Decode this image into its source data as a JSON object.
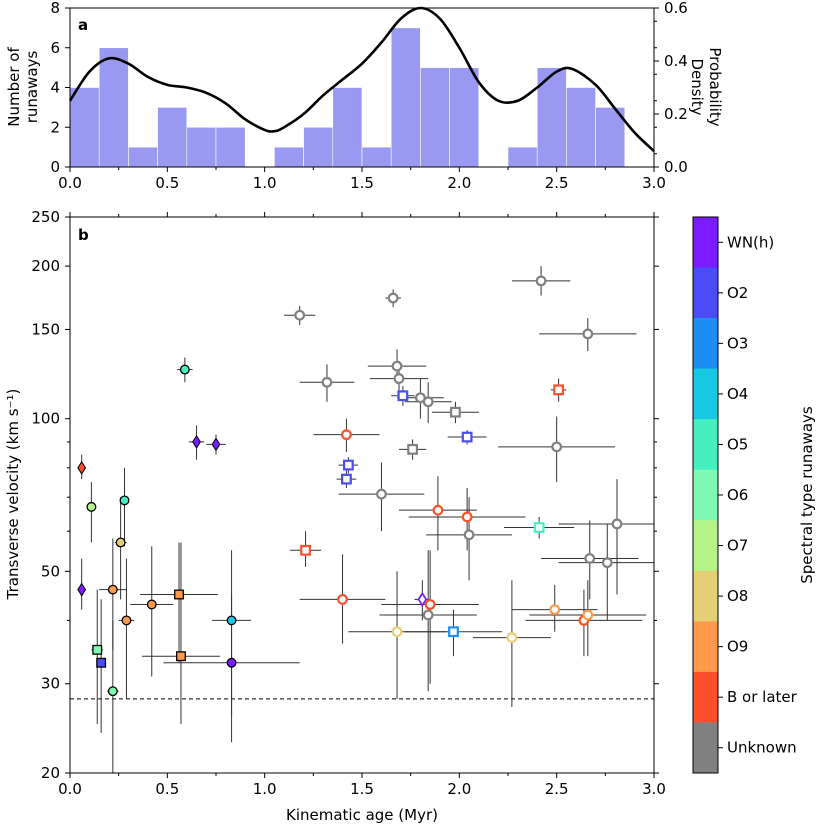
{
  "chart_data": [
    {
      "panel": "a",
      "type": "bar",
      "xlabel": "",
      "ylabel": "Number of runaways",
      "ylabel_lines": [
        "Number of",
        "runaways"
      ],
      "y2label": "Probability Density",
      "y2label_lines": [
        "Probability",
        "Density"
      ],
      "xlim": [
        0,
        3
      ],
      "ylim": [
        0,
        8
      ],
      "y2lim": [
        0,
        0.6
      ],
      "xticks": [
        "0.0",
        "0.5",
        "1.0",
        "1.5",
        "2.0",
        "2.5",
        "3.0"
      ],
      "yticks": [
        "0",
        "2",
        "4",
        "6",
        "8"
      ],
      "y2ticks": [
        "0.0",
        "0.2",
        "0.4",
        "0.6"
      ],
      "bar_color": "#9999f2",
      "bins": [
        {
          "x0": 0.0,
          "x1": 0.15,
          "count": 4
        },
        {
          "x0": 0.15,
          "x1": 0.3,
          "count": 6
        },
        {
          "x0": 0.3,
          "x1": 0.45,
          "count": 1
        },
        {
          "x0": 0.45,
          "x1": 0.6,
          "count": 3
        },
        {
          "x0": 0.6,
          "x1": 0.75,
          "count": 2
        },
        {
          "x0": 0.75,
          "x1": 0.9,
          "count": 2
        },
        {
          "x0": 0.9,
          "x1": 1.05,
          "count": 0
        },
        {
          "x0": 1.05,
          "x1": 1.2,
          "count": 1
        },
        {
          "x0": 1.2,
          "x1": 1.35,
          "count": 2
        },
        {
          "x0": 1.35,
          "x1": 1.5,
          "count": 4
        },
        {
          "x0": 1.5,
          "x1": 1.65,
          "count": 1
        },
        {
          "x0": 1.65,
          "x1": 1.8,
          "count": 7
        },
        {
          "x0": 1.8,
          "x1": 1.95,
          "count": 5
        },
        {
          "x0": 1.95,
          "x1": 2.1,
          "count": 5
        },
        {
          "x0": 2.1,
          "x1": 2.25,
          "count": 0
        },
        {
          "x0": 2.25,
          "x1": 2.4,
          "count": 1
        },
        {
          "x0": 2.4,
          "x1": 2.55,
          "count": 5
        },
        {
          "x0": 2.55,
          "x1": 2.7,
          "count": 4
        },
        {
          "x0": 2.7,
          "x1": 2.85,
          "count": 3
        }
      ],
      "density_curve": {
        "x": [
          0.0,
          0.1,
          0.2,
          0.3,
          0.4,
          0.5,
          0.6,
          0.7,
          0.8,
          0.9,
          1.0,
          1.05,
          1.1,
          1.2,
          1.3,
          1.4,
          1.5,
          1.6,
          1.7,
          1.8,
          1.9,
          2.0,
          2.1,
          2.2,
          2.3,
          2.4,
          2.5,
          2.58,
          2.7,
          2.8,
          2.9,
          3.0
        ],
        "y": [
          0.25,
          0.36,
          0.41,
          0.39,
          0.34,
          0.31,
          0.3,
          0.28,
          0.24,
          0.18,
          0.14,
          0.135,
          0.15,
          0.2,
          0.27,
          0.33,
          0.39,
          0.47,
          0.56,
          0.6,
          0.56,
          0.45,
          0.32,
          0.25,
          0.25,
          0.3,
          0.36,
          0.37,
          0.31,
          0.22,
          0.13,
          0.06
        ]
      }
    },
    {
      "panel": "b",
      "type": "scatter",
      "xlabel": "Kinematic age (Myr)",
      "ylabel": "Transverse velocity (km s⁻¹)",
      "xlim": [
        0,
        3
      ],
      "ylim": [
        20,
        250
      ],
      "yscale": "log",
      "xticks": [
        "0.0",
        "0.5",
        "1.0",
        "1.5",
        "2.0",
        "2.5",
        "3.0"
      ],
      "yticks": [
        {
          "v": 20,
          "label": "20"
        },
        {
          "v": 30,
          "label": "30"
        },
        {
          "v": 50,
          "label": "50"
        },
        {
          "v": 100,
          "label": "100"
        },
        {
          "v": 150,
          "label": "150"
        },
        {
          "v": 200,
          "label": "200"
        },
        {
          "v": 250,
          "label": "250"
        }
      ],
      "threshold_line": 28,
      "colorbar": {
        "label": "Spectral type runaways",
        "categories": [
          {
            "label": "WN(h)",
            "color": "#7a1cff"
          },
          {
            "label": "O2",
            "color": "#4a4cf7"
          },
          {
            "label": "O3",
            "color": "#1e8ef5"
          },
          {
            "label": "O4",
            "color": "#16c8e1"
          },
          {
            "label": "O5",
            "color": "#44f0c0"
          },
          {
            "label": "O6",
            "color": "#7ffab0"
          },
          {
            "label": "O7",
            "color": "#b6f28a"
          },
          {
            "label": "O8",
            "color": "#e4cf75"
          },
          {
            "label": "O9",
            "color": "#ff9a4c"
          },
          {
            "label": "B or later",
            "color": "#ff4f2a"
          },
          {
            "label": "Unknown",
            "color": "#808080"
          }
        ]
      },
      "points": [
        {
          "x": 0.06,
          "y": 80,
          "xerr": 0.0,
          "ylo": 76,
          "yhi": 85,
          "type": "B or later",
          "marker": "diamond",
          "filled": true
        },
        {
          "x": 0.06,
          "y": 46,
          "xerr": 0.0,
          "ylo": 42,
          "yhi": 53,
          "type": "WN(h)",
          "marker": "diamond",
          "filled": true
        },
        {
          "x": 0.11,
          "y": 67,
          "xerr": 0.02,
          "ylo": 57,
          "yhi": 75,
          "type": "O7",
          "marker": "circle",
          "filled": true
        },
        {
          "x": 0.28,
          "y": 69,
          "xerr": 0.02,
          "ylo": 56,
          "yhi": 80,
          "type": "O5",
          "marker": "circle",
          "filled": true
        },
        {
          "x": 0.26,
          "y": 57,
          "xerr": 0.03,
          "ylo": 44,
          "yhi": 70,
          "type": "O8",
          "marker": "circle",
          "filled": true
        },
        {
          "x": 0.22,
          "y": 46,
          "xerr": 0.07,
          "ylo": 35,
          "yhi": 58,
          "type": "O9",
          "marker": "circle",
          "filled": true
        },
        {
          "x": 0.14,
          "y": 35,
          "xerr": 0.03,
          "ylo": 25,
          "yhi": 46,
          "type": "O6",
          "marker": "square",
          "filled": true
        },
        {
          "x": 0.16,
          "y": 33,
          "xerr": 0.02,
          "ylo": 24,
          "yhi": 44,
          "type": "O2",
          "marker": "square",
          "filled": true
        },
        {
          "x": 0.22,
          "y": 29,
          "xerr": 0.03,
          "ylo": 20,
          "yhi": 40,
          "type": "O6",
          "marker": "circle",
          "filled": true
        },
        {
          "x": 0.29,
          "y": 40,
          "xerr": 0.04,
          "ylo": 28,
          "yhi": 53,
          "type": "O9",
          "marker": "circle",
          "filled": true
        },
        {
          "x": 0.42,
          "y": 43,
          "xerr": 0.11,
          "ylo": 31,
          "yhi": 56,
          "type": "O9",
          "marker": "circle",
          "filled": true
        },
        {
          "x": 0.56,
          "y": 45,
          "xerr": 0.2,
          "ylo": 33,
          "yhi": 57,
          "type": "O9",
          "marker": "square",
          "filled": true
        },
        {
          "x": 0.57,
          "y": 34,
          "xerr": 0.2,
          "ylo": 25,
          "yhi": 57,
          "type": "O9",
          "marker": "square",
          "filled": true
        },
        {
          "x": 0.59,
          "y": 125,
          "xerr": 0.04,
          "ylo": 118,
          "yhi": 132,
          "type": "O5",
          "marker": "circle",
          "filled": true
        },
        {
          "x": 0.65,
          "y": 90,
          "xerr": 0.04,
          "ylo": 83,
          "yhi": 97,
          "type": "WN(h)",
          "marker": "diamond",
          "filled": true
        },
        {
          "x": 0.75,
          "y": 89,
          "xerr": 0.05,
          "ylo": 85,
          "yhi": 93,
          "type": "WN(h)",
          "marker": "diamond",
          "filled": true
        },
        {
          "x": 0.83,
          "y": 40,
          "xerr": 0.1,
          "ylo": 26,
          "yhi": 55,
          "type": "O4",
          "marker": "circle",
          "filled": true
        },
        {
          "x": 0.83,
          "y": 33,
          "xerr": 0.35,
          "ylo": 23,
          "yhi": 45,
          "type": "WN(h)",
          "marker": "circle",
          "filled": true
        },
        {
          "x": 1.18,
          "y": 160,
          "xerr": 0.08,
          "ylo": 153,
          "yhi": 167,
          "type": "Unknown",
          "marker": "circle",
          "filled": false
        },
        {
          "x": 1.21,
          "y": 55,
          "xerr": 0.08,
          "ylo": 51,
          "yhi": 60,
          "type": "B or later",
          "marker": "square",
          "filled": false
        },
        {
          "x": 1.32,
          "y": 118,
          "xerr": 0.14,
          "ylo": 108,
          "yhi": 128,
          "type": "Unknown",
          "marker": "circle",
          "filled": false
        },
        {
          "x": 1.4,
          "y": 44,
          "xerr": 0.22,
          "ylo": 36,
          "yhi": 54,
          "type": "B or later",
          "marker": "circle",
          "filled": false
        },
        {
          "x": 1.42,
          "y": 93,
          "xerr": 0.17,
          "ylo": 86,
          "yhi": 100,
          "type": "B or later",
          "marker": "circle",
          "filled": false
        },
        {
          "x": 1.43,
          "y": 81,
          "xerr": 0.05,
          "ylo": 78,
          "yhi": 84,
          "type": "O2",
          "marker": "square",
          "filled": false
        },
        {
          "x": 1.42,
          "y": 76,
          "xerr": 0.05,
          "ylo": 73,
          "yhi": 79,
          "type": "O2",
          "marker": "square",
          "filled": false
        },
        {
          "x": 1.6,
          "y": 71,
          "xerr": 0.22,
          "ylo": 60,
          "yhi": 82,
          "type": "Unknown",
          "marker": "circle",
          "filled": false
        },
        {
          "x": 1.66,
          "y": 173,
          "xerr": 0.04,
          "ylo": 166,
          "yhi": 180,
          "type": "Unknown",
          "marker": "circle",
          "filled": false
        },
        {
          "x": 1.68,
          "y": 127,
          "xerr": 0.15,
          "ylo": 117,
          "yhi": 137,
          "type": "Unknown",
          "marker": "circle",
          "filled": false
        },
        {
          "x": 1.69,
          "y": 120,
          "xerr": 0.15,
          "ylo": 110,
          "yhi": 130,
          "type": "Unknown",
          "marker": "circle",
          "filled": false
        },
        {
          "x": 1.68,
          "y": 38,
          "xerr": 0.25,
          "ylo": 28,
          "yhi": 50,
          "type": "O8",
          "marker": "circle",
          "filled": false
        },
        {
          "x": 1.71,
          "y": 111,
          "xerr": 0.06,
          "ylo": 106,
          "yhi": 116,
          "type": "O2",
          "marker": "square",
          "filled": false
        },
        {
          "x": 1.76,
          "y": 87,
          "xerr": 0.07,
          "ylo": 83,
          "yhi": 91,
          "type": "Unknown",
          "marker": "square",
          "filled": false
        },
        {
          "x": 1.8,
          "y": 110,
          "xerr": 0.12,
          "ylo": 100,
          "yhi": 120,
          "type": "Unknown",
          "marker": "circle",
          "filled": false
        },
        {
          "x": 1.84,
          "y": 108,
          "xerr": 0.12,
          "ylo": 98,
          "yhi": 118,
          "type": "Unknown",
          "marker": "circle",
          "filled": false
        },
        {
          "x": 1.81,
          "y": 44,
          "xerr": 0.04,
          "ylo": 40,
          "yhi": 48,
          "type": "WN(h)",
          "marker": "diamond",
          "filled": false
        },
        {
          "x": 1.84,
          "y": 41,
          "xerr": 0.25,
          "ylo": 29,
          "yhi": 55,
          "type": "Unknown",
          "marker": "circle",
          "filled": false
        },
        {
          "x": 1.85,
          "y": 43,
          "xerr": 0.25,
          "ylo": 30,
          "yhi": 55,
          "type": "B or later",
          "marker": "circle",
          "filled": false
        },
        {
          "x": 1.89,
          "y": 66,
          "xerr": 0.2,
          "ylo": 55,
          "yhi": 77,
          "type": "B or later",
          "marker": "circle",
          "filled": false
        },
        {
          "x": 1.97,
          "y": 38,
          "xerr": 0.25,
          "ylo": 34,
          "yhi": 42,
          "type": "O3",
          "marker": "square",
          "filled": false
        },
        {
          "x": 1.98,
          "y": 103,
          "xerr": 0.12,
          "ylo": 98,
          "yhi": 108,
          "type": "Unknown",
          "marker": "square",
          "filled": false
        },
        {
          "x": 2.04,
          "y": 92,
          "xerr": 0.1,
          "ylo": 89,
          "yhi": 95,
          "type": "O2",
          "marker": "square",
          "filled": false
        },
        {
          "x": 2.04,
          "y": 64,
          "xerr": 0.3,
          "ylo": 55,
          "yhi": 73,
          "type": "B or later",
          "marker": "circle",
          "filled": false
        },
        {
          "x": 2.05,
          "y": 59,
          "xerr": 0.22,
          "ylo": 48,
          "yhi": 70,
          "type": "Unknown",
          "marker": "circle",
          "filled": false
        },
        {
          "x": 2.27,
          "y": 37,
          "xerr": 0.2,
          "ylo": 27,
          "yhi": 48,
          "type": "O8",
          "marker": "circle",
          "filled": false
        },
        {
          "x": 2.41,
          "y": 61,
          "xerr": 0.18,
          "ylo": 58,
          "yhi": 64,
          "type": "O5",
          "marker": "square",
          "filled": false
        },
        {
          "x": 2.42,
          "y": 187,
          "xerr": 0.15,
          "ylo": 175,
          "yhi": 200,
          "type": "Unknown",
          "marker": "circle",
          "filled": false
        },
        {
          "x": 2.49,
          "y": 42,
          "xerr": 0.22,
          "ylo": 38,
          "yhi": 47,
          "type": "O9",
          "marker": "circle",
          "filled": false
        },
        {
          "x": 2.5,
          "y": 88,
          "xerr": 0.3,
          "ylo": 75,
          "yhi": 101,
          "type": "Unknown",
          "marker": "circle",
          "filled": false
        },
        {
          "x": 2.51,
          "y": 114,
          "xerr": 0.04,
          "ylo": 108,
          "yhi": 120,
          "type": "B or later",
          "marker": "square",
          "filled": false
        },
        {
          "x": 2.64,
          "y": 40,
          "xerr": 0.3,
          "ylo": 34,
          "yhi": 46,
          "type": "B or later",
          "marker": "circle",
          "filled": false
        },
        {
          "x": 2.66,
          "y": 41,
          "xerr": 0.3,
          "ylo": 34,
          "yhi": 48,
          "type": "O9",
          "marker": "circle",
          "filled": false
        },
        {
          "x": 2.66,
          "y": 147,
          "xerr": 0.25,
          "ylo": 136,
          "yhi": 158,
          "type": "Unknown",
          "marker": "circle",
          "filled": false
        },
        {
          "x": 2.67,
          "y": 53,
          "xerr": 0.25,
          "ylo": 44,
          "yhi": 63,
          "type": "Unknown",
          "marker": "circle",
          "filled": false
        },
        {
          "x": 2.76,
          "y": 52,
          "xerr": 0.25,
          "ylo": 40,
          "yhi": 62,
          "type": "Unknown",
          "marker": "circle",
          "filled": false
        },
        {
          "x": 2.81,
          "y": 62,
          "xerr": 0.3,
          "ylo": 45,
          "yhi": 76,
          "type": "Unknown",
          "marker": "circle",
          "filled": false
        }
      ]
    }
  ]
}
